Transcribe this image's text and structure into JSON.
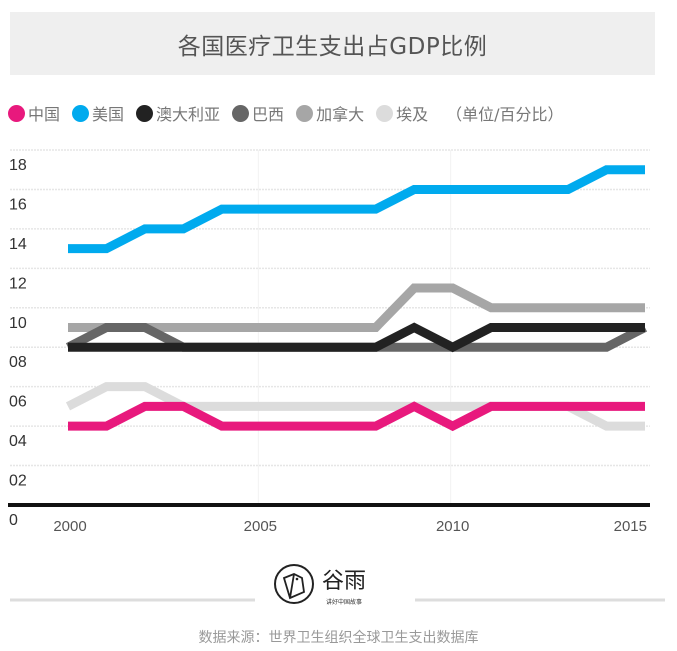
{
  "chart_data": {
    "type": "line",
    "title": "各国医疗卫生支出占GDP比例",
    "unit_note": "（单位/百分比）",
    "x": [
      2000,
      2001,
      2002,
      2003,
      2004,
      2005,
      2006,
      2007,
      2008,
      2009,
      2010,
      2011,
      2012,
      2013,
      2014,
      2015
    ],
    "x_ticks": [
      "2000",
      "2005",
      "2010",
      "2015"
    ],
    "y_ticks": [
      "0",
      "02",
      "04",
      "06",
      "08",
      "10",
      "12",
      "14",
      "16",
      "18"
    ],
    "ylim": [
      0,
      18
    ],
    "xlim": [
      2000,
      2015
    ],
    "grid": true,
    "legend_position": "top-left",
    "series": [
      {
        "name": "中国",
        "color": "#e8197d",
        "values": [
          4,
          4,
          5,
          5,
          4,
          4,
          4,
          4,
          4,
          5,
          4,
          5,
          5,
          5,
          5,
          5
        ]
      },
      {
        "name": "美国",
        "color": "#00aaee",
        "values": [
          13,
          13,
          14,
          14,
          15,
          15,
          15,
          15,
          15,
          16,
          16,
          16,
          16,
          16,
          17,
          17
        ]
      },
      {
        "name": "澳大利亚",
        "color": "#222222",
        "values": [
          8,
          8,
          8,
          8,
          8,
          8,
          8,
          8,
          8,
          9,
          8,
          9,
          9,
          9,
          9,
          9
        ]
      },
      {
        "name": "巴西",
        "color": "#666666",
        "values": [
          8,
          9,
          9,
          8,
          8,
          8,
          8,
          8,
          8,
          8,
          8,
          8,
          8,
          8,
          8,
          9
        ]
      },
      {
        "name": "加拿大",
        "color": "#a6a6a6",
        "values": [
          9,
          9,
          9,
          9,
          9,
          9,
          9,
          9,
          9,
          11,
          11,
          10,
          10,
          10,
          10,
          10
        ]
      },
      {
        "name": "埃及",
        "color": "#dcdcdc",
        "values": [
          5,
          6,
          6,
          5,
          5,
          5,
          5,
          5,
          5,
          5,
          5,
          5,
          5,
          5,
          4,
          4
        ]
      }
    ]
  },
  "legend_labels": [
    "中国",
    "美国",
    "澳大利亚",
    "巴西",
    "加拿大",
    "埃及"
  ],
  "logo": {
    "main": "谷雨",
    "sub": "讲好中国故事"
  },
  "source": "数据来源：世界卫生组织全球卫生支出数据库"
}
